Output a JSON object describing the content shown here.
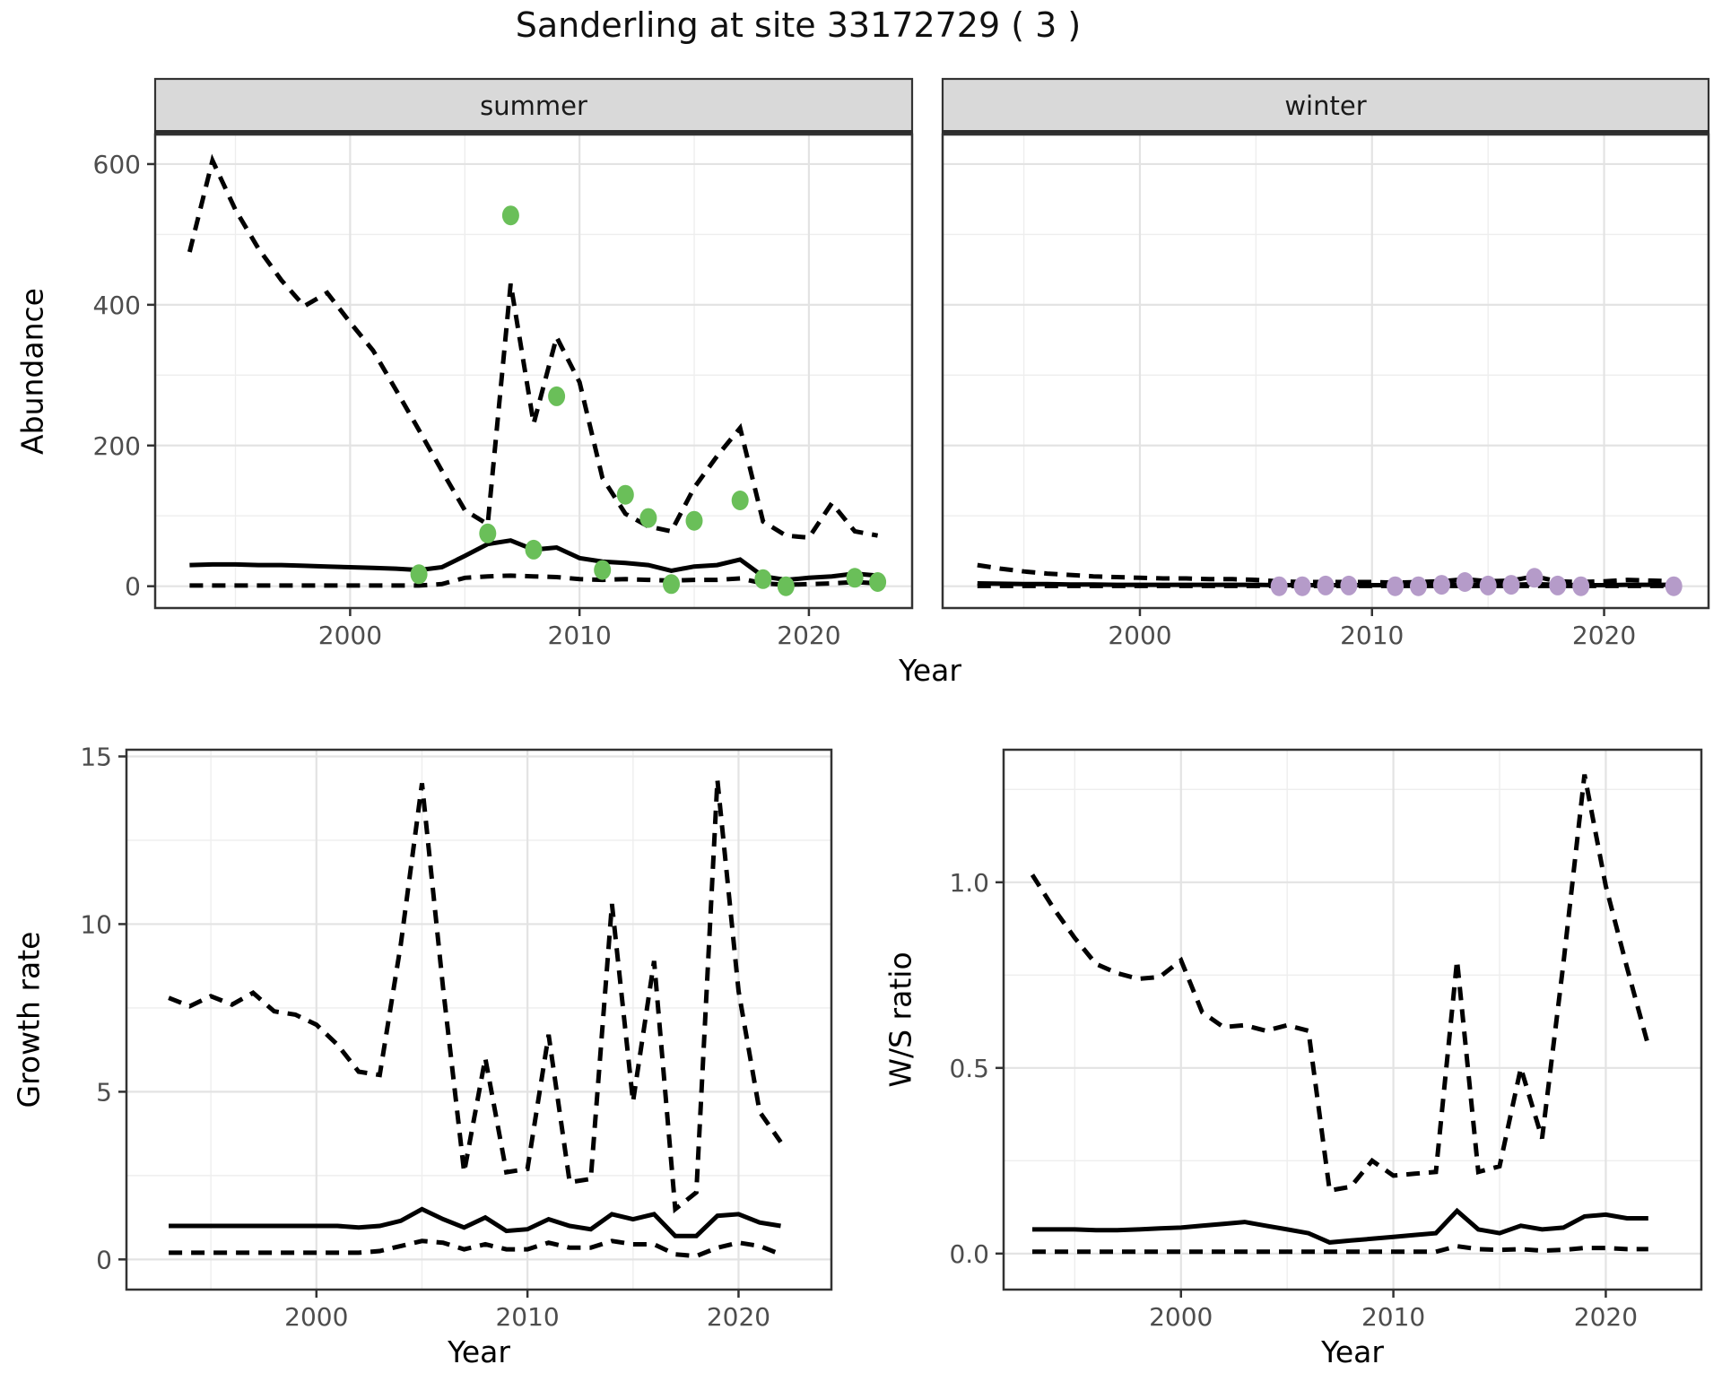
{
  "title": "Sanderling at site 33172729 ( 3 )",
  "axis_titles": {
    "abundance": "Abundance",
    "growth": "Growth rate",
    "ws": "W/S ratio",
    "year": "Year"
  },
  "facets": {
    "summer": "summer",
    "winter": "winter"
  },
  "colors": {
    "summer_point": "#6abf59",
    "winter_point": "#b59bc9",
    "line": "#000000",
    "grid_major": "#e3e3e3",
    "grid_minor": "#eeeeee",
    "strip_fill": "#d9d9d9",
    "strip_text": "#1a1a1a",
    "border": "#333333",
    "tick_label": "#4d4d4d"
  },
  "chart_data": [
    {
      "id": "abundance-summer",
      "type": "line",
      "title": "summer",
      "xlabel": "Year",
      "ylabel": "Abundance",
      "x": [
        1993,
        1994,
        1995,
        1996,
        1997,
        1998,
        1999,
        2000,
        2001,
        2002,
        2003,
        2004,
        2005,
        2006,
        2007,
        2008,
        2009,
        2010,
        2011,
        2012,
        2013,
        2014,
        2015,
        2016,
        2017,
        2018,
        2019,
        2020,
        2021,
        2022,
        2023
      ],
      "series": [
        {
          "name": "upper_95ci",
          "style": "dashed",
          "values": [
            475,
            605,
            535,
            480,
            435,
            398,
            417,
            375,
            335,
            279,
            222,
            164,
            108,
            88,
            430,
            231,
            354,
            290,
            154,
            103,
            85,
            78,
            140,
            185,
            225,
            92,
            72,
            69,
            118,
            78,
            72
          ]
        },
        {
          "name": "estimate",
          "style": "solid",
          "values": [
            30,
            31,
            31,
            30,
            30,
            29,
            28,
            27,
            26,
            25,
            23,
            27,
            43,
            60,
            65,
            52,
            55,
            40,
            35,
            33,
            30,
            22,
            28,
            30,
            38,
            14,
            9,
            12,
            14,
            18,
            15
          ]
        },
        {
          "name": "lower_95ci",
          "style": "dashed",
          "values": [
            1,
            1,
            1,
            1,
            1,
            1,
            1,
            1,
            1,
            1,
            1,
            3,
            12,
            14,
            15,
            14,
            13,
            10,
            9,
            10,
            9,
            8,
            9,
            9,
            11,
            4,
            2,
            3,
            4,
            6,
            4
          ]
        }
      ],
      "points": {
        "name": "observed-counts",
        "color": "#6abf59",
        "x": [
          2003,
          2006,
          2007,
          2008,
          2009,
          2011,
          2012,
          2013,
          2014,
          2015,
          2017,
          2018,
          2019,
          2022,
          2023
        ],
        "y": [
          17,
          75,
          527,
          52,
          270,
          23,
          130,
          97,
          3,
          93,
          122,
          10,
          0,
          12,
          6
        ]
      },
      "xlim": [
        1991.5,
        2024.5
      ],
      "ylim": [
        -31,
        642
      ],
      "xticks": [
        2000,
        2010,
        2020
      ],
      "xminor": [
        1995,
        2005,
        2015
      ],
      "yticks": [
        0,
        200,
        400,
        600
      ],
      "ytick_labels": [
        "0",
        "200",
        "400",
        "600"
      ],
      "yminor": [
        100,
        300,
        500
      ]
    },
    {
      "id": "abundance-winter",
      "type": "line",
      "title": "winter",
      "xlabel": "Year",
      "ylabel": "Abundance",
      "x": [
        1993,
        1994,
        1995,
        1996,
        1997,
        1998,
        1999,
        2000,
        2001,
        2002,
        2003,
        2004,
        2005,
        2006,
        2007,
        2008,
        2009,
        2010,
        2011,
        2012,
        2013,
        2014,
        2015,
        2016,
        2017,
        2018,
        2019,
        2020,
        2021,
        2022,
        2023
      ],
      "series": [
        {
          "name": "upper_95ci",
          "style": "dashed",
          "values": [
            30,
            25,
            21,
            18,
            16,
            14,
            13,
            12,
            11,
            11,
            10,
            10,
            9,
            7,
            6,
            6,
            6,
            6,
            5,
            6,
            7,
            10,
            7,
            8,
            14,
            7,
            6,
            7,
            9,
            8,
            7
          ]
        },
        {
          "name": "estimate",
          "style": "solid",
          "values": [
            4,
            3.5,
            3,
            3,
            2.5,
            2.5,
            2,
            2,
            2,
            2,
            2,
            2,
            2,
            1.5,
            1.5,
            1.5,
            1.5,
            1.5,
            1.5,
            1.5,
            2,
            2.5,
            2,
            2,
            3,
            2,
            1.5,
            1.5,
            2,
            2,
            2
          ]
        },
        {
          "name": "lower_95ci",
          "style": "dashed",
          "values": [
            0.3,
            0.3,
            0.3,
            0.3,
            0.3,
            0.3,
            0.3,
            0.3,
            0.3,
            0.3,
            0.3,
            0.3,
            0.3,
            0.3,
            0.3,
            0.3,
            0.3,
            0.3,
            0.3,
            0.3,
            0.3,
            0.3,
            0.3,
            0.3,
            0.3,
            0.3,
            0.3,
            0.3,
            0.3,
            0.3,
            0.3
          ]
        }
      ],
      "points": {
        "name": "observed-counts",
        "color": "#b59bc9",
        "x": [
          2006,
          2007,
          2008,
          2009,
          2011,
          2012,
          2013,
          2014,
          2015,
          2016,
          2017,
          2018,
          2019,
          2023
        ],
        "y": [
          0,
          0,
          1,
          1,
          0,
          0,
          2,
          6,
          1,
          2,
          12,
          1,
          0,
          0
        ]
      },
      "xlim": [
        1991.5,
        2024.5
      ],
      "ylim": [
        -31,
        642
      ],
      "xticks": [
        2000,
        2010,
        2020
      ],
      "xminor": [
        1995,
        2005,
        2015
      ],
      "yticks": [],
      "ytick_labels": [],
      "yminor": [
        100,
        300,
        500
      ]
    },
    {
      "id": "growth-rate",
      "type": "line",
      "title": "",
      "xlabel": "Year",
      "ylabel": "Growth rate",
      "x": [
        1993,
        1994,
        1995,
        1996,
        1997,
        1998,
        1999,
        2000,
        2001,
        2002,
        2003,
        2004,
        2005,
        2006,
        2007,
        2008,
        2009,
        2010,
        2011,
        2012,
        2013,
        2014,
        2015,
        2016,
        2017,
        2018,
        2019,
        2020,
        2021,
        2022
      ],
      "series": [
        {
          "name": "upper_95ci",
          "style": "dashed",
          "values": [
            7.8,
            7.55,
            7.85,
            7.6,
            7.95,
            7.4,
            7.3,
            7.0,
            6.4,
            5.6,
            5.5,
            9.4,
            14.2,
            8.1,
            2.6,
            6.0,
            2.6,
            2.7,
            6.7,
            2.3,
            2.4,
            10.6,
            4.7,
            8.9,
            1.5,
            2.0,
            14.3,
            8.0,
            4.4,
            3.5
          ]
        },
        {
          "name": "estimate",
          "style": "solid",
          "values": [
            1.0,
            1.0,
            1.0,
            1.0,
            1.0,
            1.0,
            1.0,
            1.0,
            1.0,
            0.95,
            1.0,
            1.15,
            1.5,
            1.2,
            0.95,
            1.25,
            0.85,
            0.9,
            1.2,
            1.0,
            0.9,
            1.35,
            1.2,
            1.35,
            0.7,
            0.7,
            1.3,
            1.35,
            1.1,
            1.0
          ]
        },
        {
          "name": "lower_95ci",
          "style": "dashed",
          "values": [
            0.2,
            0.2,
            0.2,
            0.2,
            0.2,
            0.2,
            0.2,
            0.2,
            0.2,
            0.2,
            0.25,
            0.4,
            0.55,
            0.5,
            0.3,
            0.45,
            0.3,
            0.3,
            0.5,
            0.35,
            0.35,
            0.55,
            0.45,
            0.45,
            0.15,
            0.1,
            0.35,
            0.5,
            0.4,
            0.15
          ]
        }
      ],
      "xlim": [
        1991.0,
        2024.4
      ],
      "ylim": [
        -0.9,
        15.2
      ],
      "xticks": [
        2000,
        2010,
        2020
      ],
      "xminor": [
        1995,
        2005,
        2015
      ],
      "yticks": [
        0,
        5,
        10,
        15
      ],
      "ytick_labels": [
        "0",
        "5",
        "10",
        "15"
      ],
      "yminor": [
        2.5,
        7.5,
        12.5
      ]
    },
    {
      "id": "ws-ratio",
      "type": "line",
      "title": "",
      "xlabel": "Year",
      "ylabel": "W/S ratio",
      "x": [
        1993,
        1994,
        1995,
        1996,
        1997,
        1998,
        1999,
        2000,
        2001,
        2002,
        2003,
        2004,
        2005,
        2006,
        2007,
        2008,
        2009,
        2010,
        2011,
        2012,
        2013,
        2014,
        2015,
        2016,
        2017,
        2018,
        2019,
        2020,
        2021,
        2022
      ],
      "series": [
        {
          "name": "upper_95ci",
          "style": "dashed",
          "values": [
            1.02,
            0.93,
            0.85,
            0.78,
            0.755,
            0.74,
            0.745,
            0.79,
            0.65,
            0.61,
            0.615,
            0.6,
            0.615,
            0.6,
            0.17,
            0.18,
            0.25,
            0.21,
            0.215,
            0.22,
            0.79,
            0.22,
            0.235,
            0.5,
            0.31,
            0.78,
            1.29,
            0.99,
            0.77,
            0.56
          ]
        },
        {
          "name": "estimate",
          "style": "solid",
          "values": [
            0.065,
            0.065,
            0.065,
            0.063,
            0.063,
            0.065,
            0.068,
            0.07,
            0.075,
            0.08,
            0.085,
            0.075,
            0.065,
            0.055,
            0.03,
            0.035,
            0.04,
            0.045,
            0.05,
            0.055,
            0.115,
            0.065,
            0.055,
            0.075,
            0.065,
            0.07,
            0.1,
            0.105,
            0.095,
            0.095
          ]
        },
        {
          "name": "lower_95ci",
          "style": "dashed",
          "values": [
            0.005,
            0.005,
            0.005,
            0.005,
            0.005,
            0.005,
            0.005,
            0.005,
            0.005,
            0.005,
            0.005,
            0.005,
            0.005,
            0.005,
            0.005,
            0.005,
            0.005,
            0.005,
            0.005,
            0.005,
            0.02,
            0.012,
            0.01,
            0.012,
            0.008,
            0.01,
            0.015,
            0.015,
            0.012,
            0.012
          ]
        }
      ],
      "xlim": [
        1991.65,
        2024.5
      ],
      "ylim": [
        -0.097,
        1.357
      ],
      "xticks": [
        2000,
        2010,
        2020
      ],
      "xminor": [
        1995,
        2005,
        2015
      ],
      "yticks": [
        0.0,
        0.5,
        1.0
      ],
      "ytick_labels": [
        "0.0",
        "0.5",
        "1.0"
      ],
      "yminor": [
        0.25,
        0.75,
        1.25
      ]
    }
  ]
}
